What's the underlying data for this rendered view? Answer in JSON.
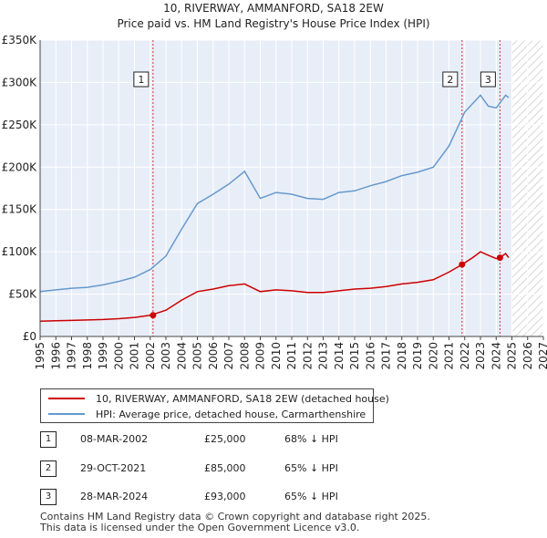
{
  "chart_data": {
    "type": "line",
    "title": "10, RIVERWAY, AMMANFORD, SA18 2EW",
    "subtitle": "Price paid vs. HM Land Registry's House Price Index (HPI)",
    "xlim": [
      1995,
      2027
    ],
    "ylim": [
      0,
      350000
    ],
    "x_ticks": [
      "1995",
      "1996",
      "1997",
      "1998",
      "1999",
      "2000",
      "2001",
      "2002",
      "2003",
      "2004",
      "2005",
      "2006",
      "2007",
      "2008",
      "2009",
      "2010",
      "2011",
      "2012",
      "2013",
      "2014",
      "2015",
      "2016",
      "2017",
      "2018",
      "2019",
      "2020",
      "2021",
      "2022",
      "2023",
      "2024",
      "2025",
      "2026",
      "2027"
    ],
    "y_ticks": [
      {
        "value": 0,
        "label": "£0"
      },
      {
        "value": 50000,
        "label": "£50K"
      },
      {
        "value": 100000,
        "label": "£100K"
      },
      {
        "value": 150000,
        "label": "£150K"
      },
      {
        "value": 200000,
        "label": "£200K"
      },
      {
        "value": 250000,
        "label": "£250K"
      },
      {
        "value": 300000,
        "label": "£300K"
      },
      {
        "value": 350000,
        "label": "£350K"
      }
    ],
    "data_end_year": 2025.0,
    "series": [
      {
        "name": "10, RIVERWAY, AMMANFORD, SA18 2EW (detached house)",
        "color": "#cc0000",
        "points": [
          [
            1995,
            18000
          ],
          [
            1996,
            18500
          ],
          [
            1997,
            19000
          ],
          [
            1998,
            19500
          ],
          [
            1999,
            20000
          ],
          [
            2000,
            21000
          ],
          [
            2001,
            22500
          ],
          [
            2002,
            25000
          ],
          [
            2003,
            31000
          ],
          [
            2004,
            43000
          ],
          [
            2005,
            53000
          ],
          [
            2006,
            56000
          ],
          [
            2007,
            60000
          ],
          [
            2008,
            62000
          ],
          [
            2009,
            53000
          ],
          [
            2010,
            55000
          ],
          [
            2011,
            54000
          ],
          [
            2012,
            52000
          ],
          [
            2013,
            52000
          ],
          [
            2014,
            54000
          ],
          [
            2015,
            56000
          ],
          [
            2016,
            57000
          ],
          [
            2017,
            59000
          ],
          [
            2018,
            62000
          ],
          [
            2019,
            64000
          ],
          [
            2020,
            67000
          ],
          [
            2021,
            76000
          ],
          [
            2021.83,
            85000
          ],
          [
            2022.5,
            93000
          ],
          [
            2023,
            100000
          ],
          [
            2023.5,
            96000
          ],
          [
            2024,
            92000
          ],
          [
            2024.24,
            93000
          ],
          [
            2024.6,
            98000
          ],
          [
            2024.8,
            93000
          ]
        ]
      },
      {
        "name": "HPI: Average price, detached house, Carmarthenshire",
        "color": "#6699cc",
        "points": [
          [
            1995,
            53000
          ],
          [
            1996,
            55000
          ],
          [
            1997,
            57000
          ],
          [
            1998,
            58000
          ],
          [
            1999,
            61000
          ],
          [
            2000,
            65000
          ],
          [
            2001,
            70000
          ],
          [
            2002,
            79000
          ],
          [
            2003,
            95000
          ],
          [
            2004,
            127000
          ],
          [
            2005,
            157000
          ],
          [
            2006,
            168000
          ],
          [
            2007,
            180000
          ],
          [
            2008,
            195000
          ],
          [
            2009,
            163000
          ],
          [
            2010,
            170000
          ],
          [
            2011,
            168000
          ],
          [
            2012,
            163000
          ],
          [
            2013,
            162000
          ],
          [
            2014,
            170000
          ],
          [
            2015,
            172000
          ],
          [
            2016,
            178000
          ],
          [
            2017,
            183000
          ],
          [
            2018,
            190000
          ],
          [
            2019,
            194000
          ],
          [
            2020,
            200000
          ],
          [
            2021,
            225000
          ],
          [
            2022,
            265000
          ],
          [
            2023,
            285000
          ],
          [
            2023.5,
            272000
          ],
          [
            2024,
            270000
          ],
          [
            2024.6,
            285000
          ],
          [
            2024.8,
            282000
          ]
        ]
      }
    ],
    "sales": [
      {
        "label": "1",
        "x": 2002.18,
        "y": 25000
      },
      {
        "label": "2",
        "x": 2021.83,
        "y": 85000
      },
      {
        "label": "3",
        "x": 2024.24,
        "y": 93000
      }
    ]
  },
  "legend": {
    "items": [
      {
        "label": "10, RIVERWAY, AMMANFORD, SA18 2EW (detached house)",
        "color": "#cc0000"
      },
      {
        "label": "HPI: Average price, detached house, Carmarthenshire",
        "color": "#6699cc"
      }
    ]
  },
  "transactions": [
    {
      "num": "1",
      "date": "08-MAR-2002",
      "price": "£25,000",
      "hpi": "68% ↓ HPI"
    },
    {
      "num": "2",
      "date": "29-OCT-2021",
      "price": "£85,000",
      "hpi": "65% ↓ HPI"
    },
    {
      "num": "3",
      "date": "28-MAR-2024",
      "price": "£93,000",
      "hpi": "65% ↓ HPI"
    }
  ],
  "footer": {
    "line1": "Contains HM Land Registry data © Crown copyright and database right 2025.",
    "line2": "This data is licensed under the Open Government Licence v3.0."
  }
}
